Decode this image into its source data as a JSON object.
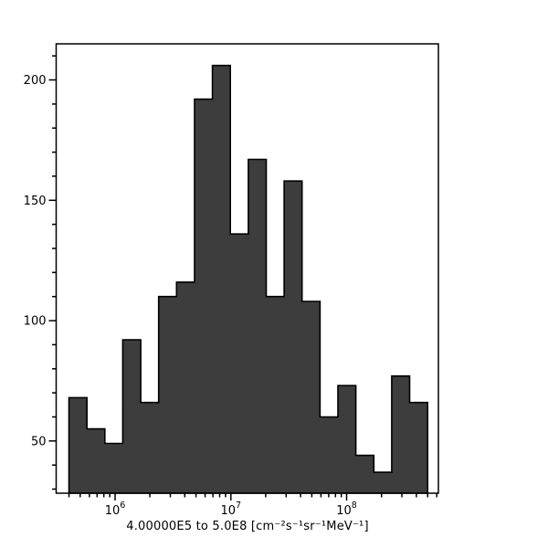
{
  "figure": {
    "background": "#ffffff",
    "bar_fill": "#3d3d3d",
    "bar_stroke": "#000000",
    "axis_color": "#000000",
    "text_color": "#000000"
  },
  "chart_data": {
    "type": "bar",
    "subtype": "histogram-stepfilled",
    "title": "",
    "xlabel": "4.00000E5 to 5.0E8 [cm⁻²s⁻¹sr⁻¹MeV⁻¹]",
    "ylabel": "",
    "x_scale": "log",
    "y_scale": "linear",
    "grid": false,
    "legend": false,
    "bin_range": {
      "min": 400000,
      "max": 500000000,
      "count": 20,
      "spacing": "log"
    },
    "bin_edges": [
      400000,
      571400,
      816100,
      1166000,
      1665000,
      2379000,
      3398000,
      4853000,
      6932000,
      9902000,
      14144000,
      20203000,
      28857000,
      41220000,
      58878000,
      84100000,
      120130000,
      171590000,
      245100000,
      350100000,
      500000000
    ],
    "values": [
      68,
      55,
      49,
      92,
      66,
      110,
      116,
      192,
      206,
      136,
      167,
      110,
      158,
      108,
      60,
      73,
      44,
      37,
      77,
      66
    ],
    "xlim": [
      310000,
      620000000
    ],
    "ylim": [
      28.3,
      215
    ],
    "x_major_ticks": [
      {
        "value": 1000000,
        "label": "10^6"
      },
      {
        "value": 10000000,
        "label": "10^7"
      },
      {
        "value": 100000000,
        "label": "10^8"
      }
    ],
    "y_major_ticks": [
      {
        "value": 50,
        "label": "50"
      },
      {
        "value": 100,
        "label": "100"
      },
      {
        "value": 150,
        "label": "150"
      },
      {
        "value": 200,
        "label": "200"
      }
    ],
    "y_minor_step": 10
  }
}
